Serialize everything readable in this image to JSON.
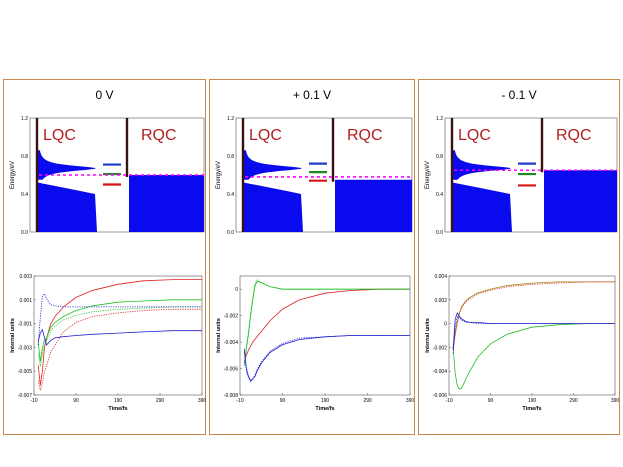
{
  "panels": [
    {
      "title": "0 V",
      "energy": {
        "ylabel": "Energy/eV",
        "yticks": [
          "0.0",
          "0.4",
          "0.8",
          "1.2"
        ],
        "left_label": "LQC",
        "right_label": "RQC",
        "left_peak_energy": 0.67,
        "right_fill_energy": 0.6,
        "fermi_energy": 0.6,
        "levels": [
          {
            "energy": 0.71,
            "color": "#1a3ccc"
          },
          {
            "energy": 0.61,
            "color": "#1f8a1f"
          },
          {
            "energy": 0.5,
            "color": "#d41414"
          }
        ]
      },
      "chart_data": {
        "type": "line",
        "xlabel": "Time/fs",
        "ylabel": "Internal units",
        "xlim": [
          -10,
          390
        ],
        "ylim": [
          -0.007,
          0.003
        ],
        "xticks": [
          "-10",
          "90",
          "190",
          "290",
          "390"
        ],
        "yticks": [
          "0.003",
          "0.001",
          "-0.001",
          "-0.003",
          "-0.005",
          "-0.007"
        ],
        "series": [
          {
            "name": "red",
            "color": "#e02020",
            "style": "solid",
            "x": [
              0,
              5,
              10,
              15,
              20,
              25,
              30,
              40,
              60,
              90,
              130,
              190,
              250,
              320,
              390
            ],
            "y": [
              -0.0045,
              -0.0062,
              -0.005,
              -0.003,
              -0.0022,
              -0.0016,
              -0.001,
              -0.0004,
              0.0004,
              0.0012,
              0.0018,
              0.0023,
              0.0026,
              0.0027,
              0.0027
            ]
          },
          {
            "name": "red dotted",
            "color": "#e02020",
            "style": "dotted",
            "x": [
              0,
              5,
              10,
              15,
              20,
              25,
              30,
              40,
              60,
              90,
              130,
              190,
              250,
              320,
              390
            ],
            "y": [
              -0.0058,
              -0.0066,
              -0.006,
              -0.005,
              -0.0045,
              -0.004,
              -0.0034,
              -0.0028,
              -0.0017,
              -0.0009,
              -0.0004,
              -0.0001,
              0.0001,
              0.0002,
              0.0002
            ]
          },
          {
            "name": "green",
            "color": "#20c020",
            "style": "solid",
            "x": [
              0,
              5,
              10,
              15,
              20,
              25,
              30,
              40,
              60,
              90,
              130,
              190,
              250,
              320,
              390
            ],
            "y": [
              -0.0025,
              -0.0042,
              -0.003,
              -0.0024,
              -0.0022,
              -0.0017,
              -0.0013,
              -0.0009,
              -0.0004,
              0.0001,
              0.0005,
              0.0008,
              0.0009,
              0.001,
              0.001
            ]
          },
          {
            "name": "green dotted",
            "color": "#20c020",
            "style": "dotted",
            "x": [
              0,
              5,
              10,
              15,
              20,
              25,
              30,
              40,
              60,
              90,
              130,
              190,
              250,
              320,
              390
            ],
            "y": [
              -0.0035,
              -0.0046,
              -0.0036,
              -0.0028,
              -0.0024,
              -0.002,
              -0.0016,
              -0.0012,
              -0.0007,
              -0.0003,
              0.0,
              0.0002,
              0.0003,
              0.0004,
              0.0004
            ]
          },
          {
            "name": "blue",
            "color": "#2020d0",
            "style": "solid",
            "x": [
              0,
              5,
              10,
              15,
              20,
              25,
              30,
              40,
              60,
              90,
              130,
              190,
              250,
              320,
              390
            ],
            "y": [
              -0.0025,
              -0.0018,
              -0.0015,
              -0.0022,
              -0.0028,
              -0.0026,
              -0.0024,
              -0.0022,
              -0.0021,
              -0.002,
              -0.0019,
              -0.0018,
              -0.0017,
              -0.0016,
              -0.0016
            ]
          },
          {
            "name": "blue dotted",
            "color": "#2020d0",
            "style": "dotted",
            "x": [
              0,
              5,
              10,
              15,
              20,
              25,
              30,
              40,
              60,
              90,
              130,
              190,
              250,
              320,
              390
            ],
            "y": [
              -0.0028,
              -0.0005,
              0.0013,
              0.0015,
              0.0011,
              0.0008,
              0.0006,
              0.0005,
              0.0004,
              0.0004,
              0.0004,
              0.0004,
              0.0004,
              0.0004,
              0.0004
            ]
          }
        ]
      }
    },
    {
      "title": "+ 0.1 V",
      "energy": {
        "ylabel": "Energy/eV",
        "yticks": [
          "0.0",
          "0.4",
          "0.8",
          "1.2"
        ],
        "left_label": "LQC",
        "right_label": "RQC",
        "left_peak_energy": 0.67,
        "right_fill_energy": 0.55,
        "fermi_energy": 0.58,
        "levels": [
          {
            "energy": 0.72,
            "color": "#1a3ccc"
          },
          {
            "energy": 0.63,
            "color": "#1f8a1f"
          },
          {
            "energy": 0.54,
            "color": "#d41414"
          }
        ]
      },
      "chart_data": {
        "type": "line",
        "xlabel": "Time/fs",
        "ylabel": "Internal units",
        "xlim": [
          -10,
          390
        ],
        "ylim": [
          -0.008,
          0.001
        ],
        "xticks": [
          "-10",
          "90",
          "190",
          "290",
          "390"
        ],
        "yticks": [
          "0",
          "-0.002",
          "-0.004",
          "-0.006",
          "-0.008"
        ],
        "series": [
          {
            "name": "red",
            "color": "#e02020",
            "style": "solid",
            "x": [
              0,
              5,
              10,
              15,
              20,
              30,
              40,
              60,
              90,
              130,
              190,
              250,
              320,
              390
            ],
            "y": [
              -0.0055,
              -0.005,
              -0.0046,
              -0.0043,
              -0.004,
              -0.0036,
              -0.0032,
              -0.0024,
              -0.0015,
              -0.0008,
              -0.0003,
              -0.0001,
              0.0,
              0.0
            ]
          },
          {
            "name": "green",
            "color": "#20c020",
            "style": "solid",
            "x": [
              0,
              5,
              10,
              15,
              20,
              25,
              30,
              40,
              60,
              90,
              130,
              190,
              250,
              320,
              390
            ],
            "y": [
              -0.0058,
              -0.0045,
              -0.0034,
              -0.002,
              -0.0008,
              0.0002,
              0.0006,
              0.0005,
              0.0002,
              0.0,
              0.0,
              0.0,
              0.0,
              0.0,
              0.0
            ]
          },
          {
            "name": "green dotted",
            "color": "#20c020",
            "style": "dotted",
            "x": [
              0,
              5,
              10,
              15,
              20,
              25,
              30,
              40,
              60,
              90,
              130,
              190,
              250,
              320,
              390
            ],
            "y": [
              -0.0056,
              -0.0043,
              -0.0032,
              -0.0018,
              -0.0006,
              0.0004,
              0.0007,
              0.0005,
              0.0002,
              0.0,
              0.0,
              0.0,
              0.0,
              0.0,
              0.0
            ]
          },
          {
            "name": "blue",
            "color": "#2020d0",
            "style": "solid",
            "x": [
              0,
              5,
              10,
              15,
              20,
              25,
              30,
              40,
              60,
              90,
              130,
              190,
              250,
              320,
              390
            ],
            "y": [
              -0.0045,
              -0.006,
              -0.0066,
              -0.0069,
              -0.0068,
              -0.0066,
              -0.0062,
              -0.0056,
              -0.0048,
              -0.0042,
              -0.0038,
              -0.0036,
              -0.0035,
              -0.0035,
              -0.0035
            ]
          },
          {
            "name": "blue dotted",
            "color": "#2020d0",
            "style": "dotted",
            "x": [
              0,
              5,
              10,
              15,
              20,
              25,
              30,
              40,
              60,
              90,
              130,
              190,
              250,
              320,
              390
            ],
            "y": [
              -0.0048,
              -0.0062,
              -0.0067,
              -0.007,
              -0.0068,
              -0.0065,
              -0.0061,
              -0.0055,
              -0.0047,
              -0.0041,
              -0.0037,
              -0.0036,
              -0.0035,
              -0.0035,
              -0.0035
            ]
          }
        ]
      }
    },
    {
      "title": "- 0.1 V",
      "energy": {
        "ylabel": "Energy/eV",
        "yticks": [
          "0.0",
          "0.4",
          "0.8",
          "1.2"
        ],
        "left_label": "LQC",
        "right_label": "RQC",
        "left_peak_energy": 0.67,
        "right_fill_energy": 0.65,
        "fermi_energy": 0.65,
        "levels": [
          {
            "energy": 0.72,
            "color": "#1a3ccc"
          },
          {
            "energy": 0.61,
            "color": "#1f8a1f"
          },
          {
            "energy": 0.49,
            "color": "#d41414"
          }
        ]
      },
      "chart_data": {
        "type": "line",
        "xlabel": "Time/fs",
        "ylabel": "Internal units",
        "xlim": [
          -10,
          390
        ],
        "ylim": [
          -0.006,
          0.004
        ],
        "xticks": [
          "-10",
          "90",
          "190",
          "290",
          "390"
        ],
        "yticks": [
          "0.004",
          "0.002",
          "0",
          "-0.002",
          "-0.004",
          "-0.006"
        ],
        "series": [
          {
            "name": "olive",
            "color": "#a08a10",
            "style": "solid",
            "x": [
              0,
              5,
              10,
              15,
              20,
              30,
              40,
              60,
              90,
              130,
              190,
              250,
              320,
              390
            ],
            "y": [
              -0.002,
              -0.0008,
              0.0002,
              0.0009,
              0.0014,
              0.0019,
              0.0022,
              0.0026,
              0.0029,
              0.0032,
              0.0034,
              0.0035,
              0.0035,
              0.0035
            ]
          },
          {
            "name": "red dotted",
            "color": "#e02020",
            "style": "dotted",
            "x": [
              0,
              5,
              10,
              15,
              20,
              30,
              40,
              60,
              90,
              130,
              190,
              250,
              320,
              390
            ],
            "y": [
              -0.0022,
              -0.001,
              0.0,
              0.0008,
              0.0013,
              0.0018,
              0.0021,
              0.0025,
              0.0028,
              0.0031,
              0.0033,
              0.0034,
              0.0035,
              0.0035
            ]
          },
          {
            "name": "green",
            "color": "#20c020",
            "style": "solid",
            "x": [
              0,
              5,
              10,
              15,
              20,
              25,
              30,
              40,
              60,
              90,
              130,
              190,
              250,
              320,
              390
            ],
            "y": [
              -0.002,
              -0.0042,
              -0.0052,
              -0.0055,
              -0.0054,
              -0.0051,
              -0.0047,
              -0.004,
              -0.0028,
              -0.0017,
              -0.0009,
              -0.0003,
              -0.0001,
              0.0,
              0.0
            ]
          },
          {
            "name": "blue",
            "color": "#2020d0",
            "style": "solid",
            "x": [
              0,
              5,
              10,
              15,
              20,
              25,
              30,
              40,
              60,
              90,
              130,
              190,
              250,
              320,
              390
            ],
            "y": [
              -0.0022,
              0.0004,
              0.0009,
              0.0006,
              0.0004,
              0.0003,
              0.0002,
              0.0001,
              0.0001,
              0.0,
              0.0,
              0.0,
              0.0,
              0.0,
              0.0
            ]
          },
          {
            "name": "blue dotted",
            "color": "#2020d0",
            "style": "dotted",
            "x": [
              0,
              5,
              10,
              15,
              20,
              25,
              30,
              40,
              60,
              90,
              130,
              190,
              250,
              320,
              390
            ],
            "y": [
              -0.0025,
              -0.0003,
              0.0006,
              0.0005,
              0.0003,
              0.0002,
              0.0001,
              0.0001,
              0.0,
              0.0,
              0.0,
              0.0,
              0.0,
              0.0,
              0.0
            ]
          }
        ]
      }
    }
  ]
}
